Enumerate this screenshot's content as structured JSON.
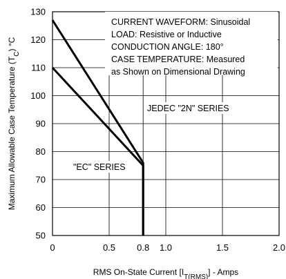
{
  "chart_data": {
    "type": "line",
    "xlabel": "RMS On-State Current [I",
    "xlabel_sub": "T(RMS)",
    "xlabel_tail": "] - Amps",
    "ylabel": "Maximum Allowable Case Temperature (T",
    "ylabel_sub": "C",
    "ylabel_tail": ") °C",
    "xlim": [
      0,
      2.0
    ],
    "ylim": [
      50,
      130
    ],
    "x_ticks": [
      0,
      0.5,
      0.8,
      1.0,
      1.5,
      2.0
    ],
    "x_tick_labels": [
      "0",
      "0.5",
      "0.8",
      "1.0",
      "1.5",
      "2.0"
    ],
    "y_ticks": [
      50,
      60,
      70,
      80,
      90,
      100,
      110,
      120,
      130
    ],
    "y_tick_labels": [
      "50",
      "60",
      "70",
      "80",
      "90",
      "100",
      "110",
      "120",
      "130"
    ],
    "grid": true,
    "series": [
      {
        "name": "JEDEC \"2N\" SERIES",
        "x": [
          0,
          0.8,
          0.8
        ],
        "y": [
          127,
          76,
          50
        ]
      },
      {
        "name": "\"EC\" SERIES",
        "x": [
          0,
          0.8,
          0.8
        ],
        "y": [
          110,
          75,
          50
        ]
      }
    ],
    "annotations": [
      "CURRENT WAVEFORM: Sinusoidal",
      "LOAD: Resistive or Inductive",
      "CONDUCTION ANGLE: 180°",
      "CASE TEMPERATURE: Measured",
      "as Shown on Dimensional Drawing"
    ]
  }
}
